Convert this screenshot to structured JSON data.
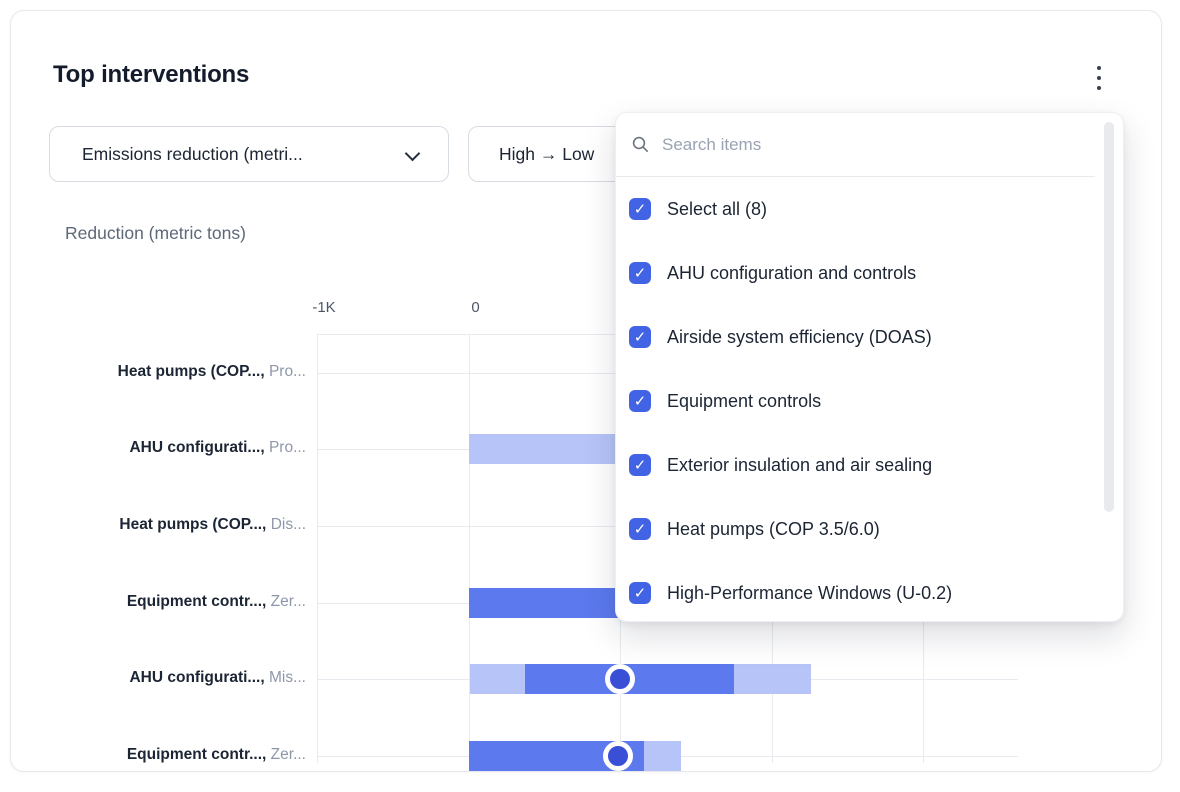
{
  "card": {
    "title": "Top interventions"
  },
  "filters": {
    "metric_dropdown": {
      "label": "Emissions reduction (metri..."
    },
    "sort_dropdown": {
      "label": "High → Low"
    }
  },
  "dropdown_panel": {
    "search_placeholder": "Search items",
    "items": [
      {
        "label": "Select all (8)",
        "checked": true
      },
      {
        "label": "AHU configuration and controls",
        "checked": true
      },
      {
        "label": "Airside system efficiency (DOAS)",
        "checked": true
      },
      {
        "label": "Equipment controls",
        "checked": true
      },
      {
        "label": "Exterior insulation and air sealing",
        "checked": true
      },
      {
        "label": "Heat pumps (COP 3.5/6.0)",
        "checked": true
      },
      {
        "label": "High-Performance Windows (U-0.2)",
        "checked": true
      }
    ]
  },
  "icons": {
    "check": "✓",
    "kebab": "kebab-menu-icon",
    "search": "search-icon",
    "chevron": "chevron-down-icon"
  },
  "colors": {
    "accent": "#4263e4",
    "bar_dark": "#5c79ed",
    "bar_light": "#b7c4f8",
    "marker_fill": "#3950d6",
    "gridline": "#e8eaef"
  },
  "chart_data": {
    "type": "bar",
    "orientation": "horizontal",
    "title": "Reduction (metric tons)",
    "unit": "metric tons",
    "x_axis": {
      "ticks_visible": [
        {
          "value": -1000,
          "label": "-1K"
        },
        {
          "value": 0,
          "label": "0"
        }
      ],
      "gridline_values": [
        -1000,
        0,
        1000,
        2000,
        3000
      ],
      "xlim": [
        -1000,
        3650
      ],
      "grid": true
    },
    "rows": [
      {
        "intervention": "Heat pumps (COP...,",
        "scenario": "Pro...",
        "segments": [],
        "marker": null
      },
      {
        "intervention": "AHU configurati...,",
        "scenario": "Pro...",
        "segments": [
          {
            "from": 0,
            "to": 1500,
            "tone": "light"
          }
        ],
        "marker": null,
        "truncated_by_dropdown": true
      },
      {
        "intervention": "Heat pumps (COP...,",
        "scenario": "Dis...",
        "segments": [],
        "marker": null
      },
      {
        "intervention": "Equipment contr...,",
        "scenario": "Zer...",
        "segments": [
          {
            "from": 0,
            "to": 1500,
            "tone": "dark"
          }
        ],
        "marker": null,
        "truncated_by_dropdown": true
      },
      {
        "intervention": "AHU configurati...,",
        "scenario": "Mis...",
        "segments": [
          {
            "from": 10,
            "to": 370,
            "tone": "light"
          },
          {
            "from": 370,
            "to": 1750,
            "tone": "dark"
          },
          {
            "from": 1750,
            "to": 2260,
            "tone": "light"
          }
        ],
        "marker": 1000
      },
      {
        "intervention": "Equipment contr...,",
        "scenario": "Zer...",
        "segments": [
          {
            "from": 0,
            "to": 1160,
            "tone": "dark"
          },
          {
            "from": 1160,
            "to": 1400,
            "tone": "light"
          }
        ],
        "marker": 985
      }
    ]
  }
}
